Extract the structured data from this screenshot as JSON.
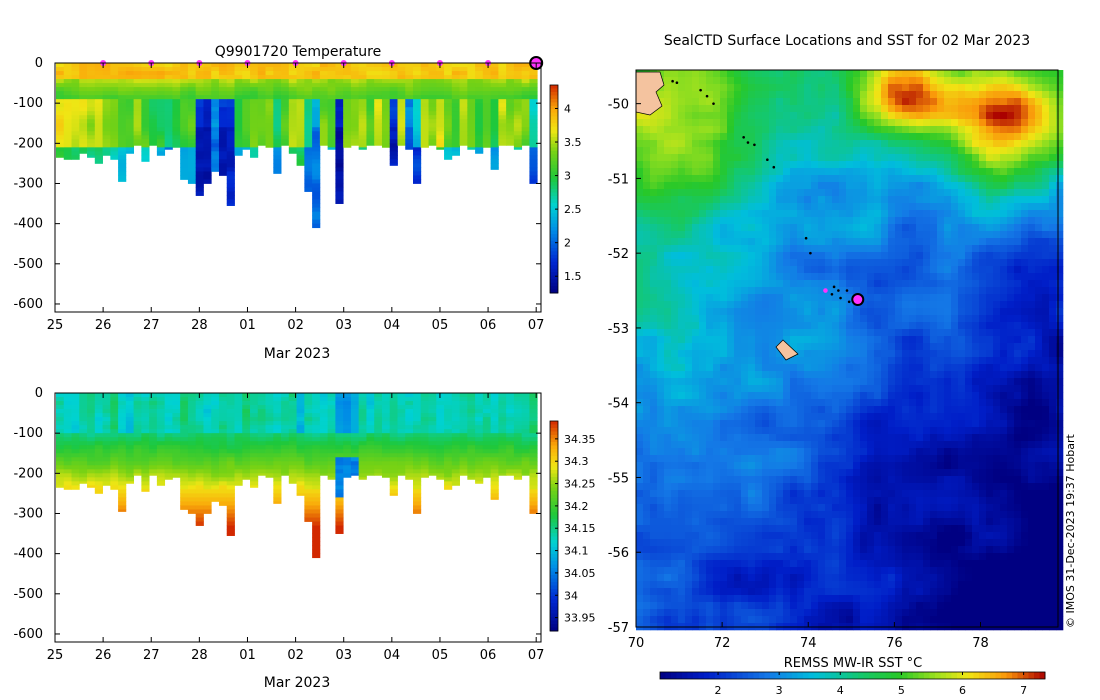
{
  "temperature_panel": {
    "title": "Q9901720  Temperature",
    "xlabel": "Mar 2023"
  },
  "salinity_panel": {
    "xlabel": "Mar 2023"
  },
  "map_panel": {
    "title": "SealCTD Surface Locations and SST for 02 Mar 2023",
    "colorbar_label": "REMSS MW-IR SST °C",
    "credit": "© IMOS 31-Dec-2023 19:37 Hobart"
  },
  "chart_data": [
    {
      "type": "heatmap",
      "id": "temperature_profiles",
      "title": "Q9901720  Temperature",
      "xlabel": "Mar 2023",
      "ylabel": "",
      "x_tick_labels": [
        "25",
        "26",
        "27",
        "28",
        "01",
        "02",
        "03",
        "04",
        "05",
        "06",
        "07"
      ],
      "y_tick_labels": [
        "0",
        "-100",
        "-200",
        "-300",
        "-400",
        "-500",
        "-600"
      ],
      "xlim_days": [
        0,
        10.1
      ],
      "ylim": [
        -620,
        0
      ],
      "colorbar": {
        "min": 1.25,
        "max": 4.35,
        "ticks": [
          "1.5",
          "2",
          "2.5",
          "3",
          "3.5",
          "4"
        ]
      },
      "daily_markers_days": [
        1,
        2,
        3,
        4,
        5,
        6,
        7,
        8,
        9
      ],
      "marker_color": "#ff33ff",
      "last_profile_marker_day": 10.0,
      "profile_max_depths": [
        235,
        240,
        240,
        225,
        235,
        250,
        230,
        240,
        295,
        225,
        205,
        245,
        205,
        230,
        215,
        210,
        290,
        300,
        330,
        300,
        270,
        280,
        355,
        230,
        215,
        235,
        205,
        210,
        275,
        205,
        225,
        255,
        320,
        410,
        205,
        215,
        350,
        210,
        205,
        215,
        205,
        205,
        210,
        255,
        205,
        215,
        300,
        210,
        205,
        215,
        240,
        230,
        205,
        215,
        225,
        210,
        265,
        205,
        205,
        215,
        205,
        300
      ],
      "mean_temperature_sample_c": [
        3.6,
        3.5,
        3.4,
        3.5,
        3.3,
        3.4,
        3.2,
        3.1,
        3.0,
        2.9,
        3.2,
        3.0,
        2.7,
        2.8,
        2.6,
        2.7,
        2.9,
        3.0,
        1.6,
        1.5,
        2.1,
        1.6,
        1.7,
        2.8,
        2.9,
        3.1,
        3.1,
        3.2,
        2.7,
        3.0,
        3.3,
        3.4,
        2.6,
        2.1,
        3.1,
        2.9,
        1.5,
        3.3,
        3.2,
        3.3,
        3.0,
        3.4,
        3.2,
        1.6,
        3.3,
        2.0,
        2.3,
        3.3,
        3.2,
        3.4,
        3.1,
        3.0,
        3.4,
        3.2,
        2.9,
        3.0,
        2.8,
        3.4,
        3.2,
        3.3,
        3.1,
        2.4
      ]
    },
    {
      "type": "heatmap",
      "id": "salinity_profiles",
      "title": "",
      "xlabel": "Mar 2023",
      "ylabel": "",
      "x_tick_labels": [
        "25",
        "26",
        "27",
        "28",
        "01",
        "02",
        "03",
        "04",
        "05",
        "06",
        "07"
      ],
      "y_tick_labels": [
        "0",
        "-100",
        "-200",
        "-300",
        "-400",
        "-500",
        "-600"
      ],
      "xlim_days": [
        0,
        10.1
      ],
      "ylim": [
        -620,
        0
      ],
      "colorbar": {
        "min": 33.92,
        "max": 34.39,
        "ticks": [
          "33.95",
          "34",
          "34.05",
          "34.1",
          "34.15",
          "34.2",
          "34.25",
          "34.3",
          "34.35"
        ]
      },
      "surface_salinity_sample": [
        34.12,
        34.11,
        34.1,
        34.12,
        34.13,
        34.11,
        34.12,
        34.14,
        34.1,
        34.09,
        34.12,
        34.11,
        34.13,
        34.12,
        34.1,
        34.11,
        34.14,
        34.13,
        34.12,
        34.1,
        34.11,
        34.13,
        34.12,
        34.11,
        34.14,
        34.12,
        34.13,
        34.12,
        34.11,
        34.12,
        34.13,
        34.08,
        34.12,
        34.11,
        34.1,
        34.12,
        34.06,
        34.05,
        34.07,
        34.12,
        34.1,
        34.12,
        34.11,
        34.13,
        34.12,
        34.11,
        34.12,
        34.13,
        34.12,
        34.1,
        34.12,
        34.11,
        34.12,
        34.13,
        34.11,
        34.12,
        34.1,
        34.12,
        34.11,
        34.12,
        34.13,
        34.14
      ]
    },
    {
      "type": "heatmap",
      "id": "sst_map",
      "title": "SealCTD Surface Locations and SST for 02 Mar 2023",
      "xlabel": "",
      "ylabel": "",
      "x_tick_labels": [
        "70",
        "72",
        "74",
        "76",
        "78"
      ],
      "y_tick_labels": [
        "-50",
        "-51",
        "-52",
        "-53",
        "-54",
        "-55",
        "-56",
        "-57"
      ],
      "lon_range": [
        70,
        79.8
      ],
      "lat_range": [
        -57,
        -49.55
      ],
      "colorbar": {
        "label": "REMSS MW-IR SST °C",
        "min": 1.05,
        "max": 7.35,
        "ticks": [
          "2",
          "3",
          "4",
          "5",
          "6",
          "7"
        ]
      },
      "track_lonlat": [
        [
          70.85,
          -49.7
        ],
        [
          70.95,
          -49.72
        ],
        [
          71.5,
          -49.82
        ],
        [
          71.65,
          -49.9
        ],
        [
          71.8,
          -50.0
        ],
        [
          72.5,
          -50.45
        ],
        [
          72.6,
          -50.52
        ],
        [
          72.75,
          -50.55
        ],
        [
          73.05,
          -50.75
        ],
        [
          73.2,
          -50.85
        ],
        [
          73.95,
          -51.8
        ],
        [
          74.05,
          -52.0
        ],
        [
          74.6,
          -52.45
        ],
        [
          74.7,
          -52.5
        ],
        [
          74.55,
          -52.55
        ],
        [
          74.75,
          -52.6
        ],
        [
          74.9,
          -52.5
        ],
        [
          74.95,
          -52.65
        ]
      ],
      "today_positions_lonlat": [
        [
          74.4,
          -52.5
        ],
        [
          75.15,
          -52.6
        ]
      ],
      "current_position_lonlat": [
        75.15,
        -52.62
      ]
    }
  ]
}
